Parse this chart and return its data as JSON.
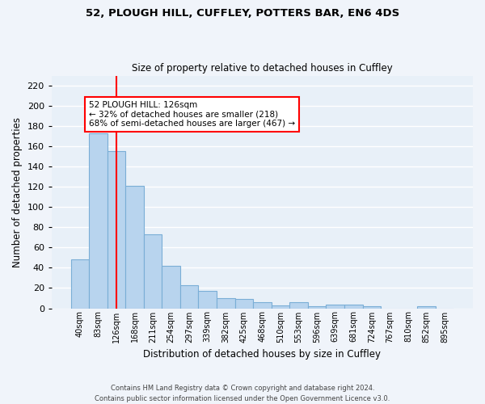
{
  "title1": "52, PLOUGH HILL, CUFFLEY, POTTERS BAR, EN6 4DS",
  "title2": "Size of property relative to detached houses in Cuffley",
  "xlabel": "Distribution of detached houses by size in Cuffley",
  "ylabel": "Number of detached properties",
  "bar_color": "#b8d4ee",
  "bar_edge_color": "#7aaed6",
  "background_color": "#e8f0f8",
  "grid_color": "#ffffff",
  "fig_background": "#f0f4fa",
  "categories": [
    "40sqm",
    "83sqm",
    "126sqm",
    "168sqm",
    "211sqm",
    "254sqm",
    "297sqm",
    "339sqm",
    "382sqm",
    "425sqm",
    "468sqm",
    "510sqm",
    "553sqm",
    "596sqm",
    "639sqm",
    "681sqm",
    "724sqm",
    "767sqm",
    "810sqm",
    "852sqm",
    "895sqm"
  ],
  "values": [
    48,
    173,
    155,
    121,
    73,
    42,
    23,
    17,
    10,
    9,
    6,
    3,
    6,
    2,
    4,
    4,
    2,
    0,
    0,
    2,
    0
  ],
  "red_line_x": 2,
  "annotation_text": "52 PLOUGH HILL: 126sqm\n← 32% of detached houses are smaller (218)\n68% of semi-detached houses are larger (467) →",
  "footer": "Contains HM Land Registry data © Crown copyright and database right 2024.\nContains public sector information licensed under the Open Government Licence v3.0.",
  "ylim": [
    0,
    230
  ],
  "yticks": [
    0,
    20,
    40,
    60,
    80,
    100,
    120,
    140,
    160,
    180,
    200,
    220
  ]
}
